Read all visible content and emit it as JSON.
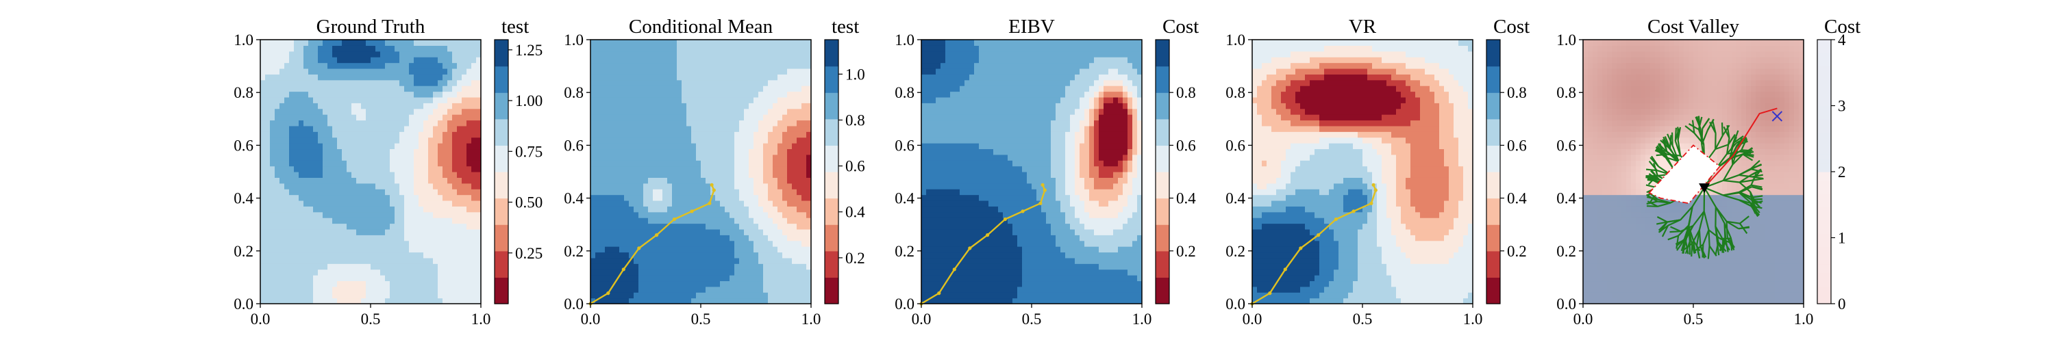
{
  "figure": {
    "panel_count": 5
  },
  "colors": {
    "rdbu": [
      "#67001f",
      "#b2182b",
      "#d6604d",
      "#f4a582",
      "#fddbc7",
      "#f7f7f7",
      "#d1e5f0",
      "#92c5de",
      "#4393c3",
      "#2166ac",
      "#053061"
    ],
    "path": "#e0c020",
    "tree": "#1e7d1e",
    "cost_valley_low": "#ffffff",
    "cost_valley_high": "#c0504d",
    "cost_valley_lower_band": "#7f97b8",
    "best_path": "#e41a1c",
    "target_marker": "#3333cc"
  },
  "chart_data": [
    {
      "type": "heatmap",
      "title": "Ground Truth",
      "colorbar_label": "test",
      "colorbar_ticks": [
        "0.25",
        "0.50",
        "0.75",
        "1.00",
        "1.25"
      ],
      "colorbar_range": [
        0.0,
        1.3
      ],
      "xlim": [
        0.0,
        1.0
      ],
      "ylim": [
        0.0,
        1.0
      ],
      "xticks": [
        "0.0",
        "0.5",
        "1.0"
      ],
      "yticks": [
        "0.0",
        "0.2",
        "0.4",
        "0.6",
        "0.8",
        "1.0"
      ],
      "field": "ground_truth",
      "path": []
    },
    {
      "type": "heatmap",
      "title": "Conditional Mean",
      "colorbar_label": "test",
      "colorbar_ticks": [
        "0.2",
        "0.4",
        "0.6",
        "0.8",
        "1.0"
      ],
      "colorbar_range": [
        0.0,
        1.15
      ],
      "xlim": [
        0.0,
        1.0
      ],
      "ylim": [
        0.0,
        1.0
      ],
      "xticks": [
        "0.0",
        "0.5",
        "1.0"
      ],
      "yticks": [
        "0.0",
        "0.2",
        "0.4",
        "0.6",
        "0.8",
        "1.0"
      ],
      "field": "conditional_mean",
      "path": [
        [
          0.0,
          0.0
        ],
        [
          0.08,
          0.04
        ],
        [
          0.15,
          0.13
        ],
        [
          0.22,
          0.21
        ],
        [
          0.3,
          0.26
        ],
        [
          0.38,
          0.32
        ],
        [
          0.46,
          0.35
        ],
        [
          0.54,
          0.38
        ],
        [
          0.56,
          0.43
        ],
        [
          0.55,
          0.45
        ]
      ]
    },
    {
      "type": "heatmap",
      "title": "EIBV",
      "colorbar_label": "Cost",
      "colorbar_ticks": [
        "0.2",
        "0.4",
        "0.6",
        "0.8"
      ],
      "colorbar_range": [
        0.0,
        1.0
      ],
      "xlim": [
        0.0,
        1.0
      ],
      "ylim": [
        0.0,
        1.0
      ],
      "xticks": [
        "0.0",
        "0.5",
        "1.0"
      ],
      "yticks": [
        "0.0",
        "0.2",
        "0.4",
        "0.6",
        "0.8",
        "1.0"
      ],
      "field": "eibv",
      "path": [
        [
          0.0,
          0.0
        ],
        [
          0.08,
          0.04
        ],
        [
          0.15,
          0.13
        ],
        [
          0.22,
          0.21
        ],
        [
          0.3,
          0.26
        ],
        [
          0.38,
          0.32
        ],
        [
          0.46,
          0.35
        ],
        [
          0.54,
          0.38
        ],
        [
          0.56,
          0.43
        ],
        [
          0.55,
          0.45
        ]
      ]
    },
    {
      "type": "heatmap",
      "title": "VR",
      "colorbar_label": "Cost",
      "colorbar_ticks": [
        "0.2",
        "0.4",
        "0.6",
        "0.8"
      ],
      "colorbar_range": [
        0.0,
        1.0
      ],
      "xlim": [
        0.0,
        1.0
      ],
      "ylim": [
        0.0,
        1.0
      ],
      "xticks": [
        "0.0",
        "0.5",
        "1.0"
      ],
      "yticks": [
        "0.0",
        "0.2",
        "0.4",
        "0.6",
        "0.8",
        "1.0"
      ],
      "field": "vr",
      "path": [
        [
          0.0,
          0.0
        ],
        [
          0.08,
          0.04
        ],
        [
          0.15,
          0.13
        ],
        [
          0.22,
          0.21
        ],
        [
          0.3,
          0.26
        ],
        [
          0.38,
          0.32
        ],
        [
          0.46,
          0.35
        ],
        [
          0.54,
          0.38
        ],
        [
          0.56,
          0.43
        ],
        [
          0.55,
          0.45
        ]
      ]
    },
    {
      "type": "heatmap",
      "title": "Cost Valley",
      "colorbar_label": "Cost",
      "colorbar_ticks": [
        "0",
        "1",
        "2",
        "3",
        "4"
      ],
      "colorbar_range": [
        0.0,
        4.0
      ],
      "xlim": [
        0.0,
        1.0
      ],
      "ylim": [
        0.0,
        1.0
      ],
      "xticks": [
        "0.0",
        "0.5",
        "1.0"
      ],
      "yticks": [
        "0.0",
        "0.2",
        "0.4",
        "0.6",
        "0.8",
        "1.0"
      ],
      "field": "cost_valley",
      "current_location": [
        0.55,
        0.44
      ],
      "target_location": [
        0.88,
        0.71
      ],
      "best_path": [
        [
          0.55,
          0.44
        ],
        [
          0.68,
          0.56
        ],
        [
          0.8,
          0.72
        ],
        [
          0.88,
          0.74
        ]
      ],
      "path": []
    }
  ]
}
